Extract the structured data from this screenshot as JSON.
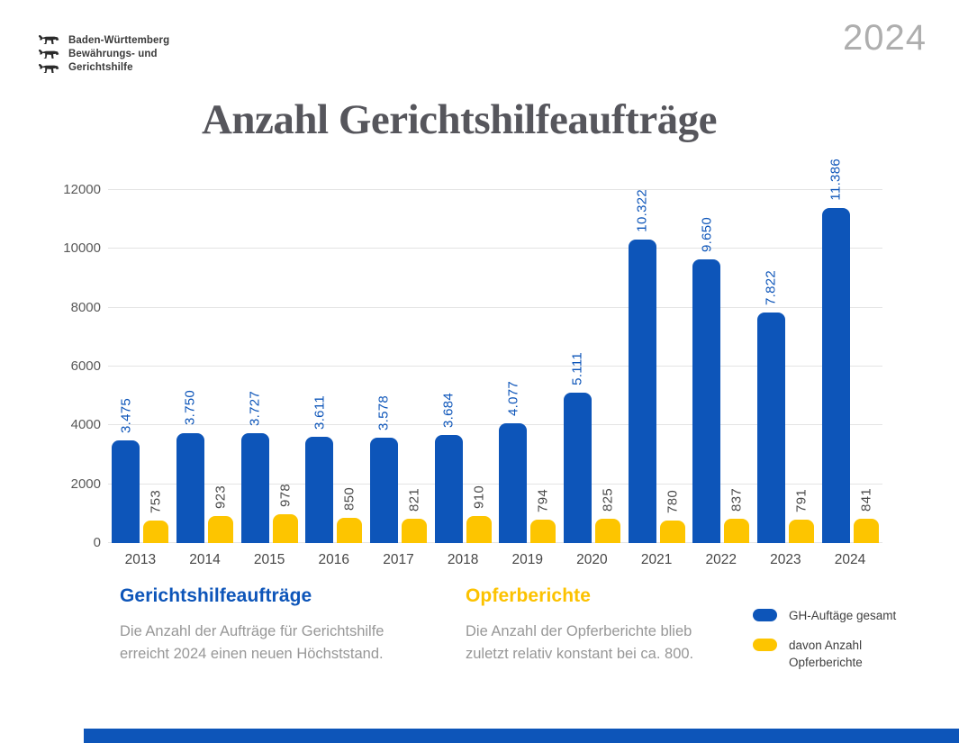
{
  "header": {
    "logo_lines": [
      "Baden-Württemberg",
      "Bewährungs- und",
      "Gerichtshilfe"
    ],
    "year_badge": "2024"
  },
  "title": "Anzahl Gerichtshilfeaufträge",
  "chart_data": {
    "type": "bar",
    "title": "Anzahl Gerichtshilfeaufträge",
    "categories": [
      "2013",
      "2014",
      "2015",
      "2016",
      "2017",
      "2018",
      "2019",
      "2020",
      "2021",
      "2022",
      "2023",
      "2024"
    ],
    "series": [
      {
        "name": "GH-Auftäge gesamt",
        "color": "#0d55b9",
        "label_color": "#0d55b9",
        "values": [
          3475,
          3750,
          3727,
          3611,
          3578,
          3684,
          4077,
          5111,
          10322,
          9650,
          7822,
          11386
        ],
        "labels": [
          "3.475",
          "3.750",
          "3.727",
          "3.611",
          "3.578",
          "3.684",
          "4.077",
          "5.111",
          "10.322",
          "9.650",
          "7.822",
          "11.386"
        ]
      },
      {
        "name": "davon Anzahl Opferberichte",
        "color": "#fdc500",
        "label_color": "#4a4a4a",
        "values": [
          753,
          923,
          978,
          850,
          821,
          910,
          794,
          825,
          780,
          837,
          791,
          841
        ],
        "labels": [
          "753",
          "923",
          "978",
          "850",
          "821",
          "910",
          "794",
          "825",
          "780",
          "837",
          "791",
          "841"
        ]
      }
    ],
    "xlabel": "",
    "ylabel": "",
    "ylim": [
      0,
      12000
    ],
    "y_ticks": [
      0,
      2000,
      4000,
      6000,
      8000,
      10000,
      12000
    ],
    "grid": true,
    "legend_position": "bottom-right"
  },
  "insights": [
    {
      "heading": "Gerichtshilfeaufträge",
      "heading_color": "#0d55b9",
      "text": "Die Anzahl der Aufträge für Gerichtshilfe erreicht 2024 einen neuen Höchststand."
    },
    {
      "heading": "Opferberichte",
      "heading_color": "#fcc200",
      "text": "Die Anzahl der Opferberichte blieb zuletzt relativ konstant bei ca. 800."
    }
  ],
  "legend": [
    {
      "label": "GH-Auftäge gesamt",
      "color": "#0d55b9"
    },
    {
      "label": "davon Anzahl Opferberichte",
      "color": "#fdc500"
    }
  ],
  "footer": {
    "bar_color": "#0d55b9"
  },
  "icons": {
    "logo": "baden-wuerttemberg-three-lions-icon"
  }
}
